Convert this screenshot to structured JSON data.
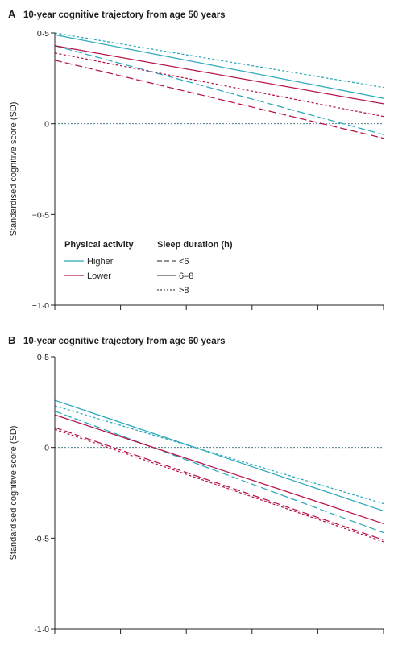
{
  "chart_data": [
    {
      "type": "line",
      "panel_letter": "A",
      "title": "10-year cognitive trajectory from age 50 years",
      "ylabel": "Standardised cognitive score (SD)",
      "xlabel": "",
      "yticks": [
        {
          "value": 0.5,
          "label": "0·5"
        },
        {
          "value": 0,
          "label": "0"
        },
        {
          "value": -0.5,
          "label": "−0·5"
        },
        {
          "value": -1,
          "label": "−1·0"
        }
      ],
      "ylim": [
        -1,
        0.5
      ],
      "xlim": [
        0,
        10
      ],
      "xticks": [
        0,
        2,
        4,
        6,
        8,
        10
      ],
      "reference_line": 0,
      "grid": false,
      "legend": {
        "placement": "bottom-left",
        "color_title": "Physical activity",
        "color_items": [
          {
            "label": "Higher",
            "color": "#2aa8bb"
          },
          {
            "label": "Lower",
            "color": "#b5144a"
          }
        ],
        "dash_title": "Sleep duration (h)",
        "dash_items": [
          {
            "label": "<6",
            "style": "dashed"
          },
          {
            "label": "6–8",
            "style": "solid"
          },
          {
            "label": ">8",
            "style": "dotted"
          }
        ]
      },
      "series": [
        {
          "activity": "Higher",
          "sleep": "<6",
          "color": "#2aa8bb",
          "style": "dashed",
          "x": [
            0,
            10
          ],
          "y": [
            0.43,
            -0.06
          ]
        },
        {
          "activity": "Higher",
          "sleep": "6–8",
          "color": "#2aa8bb",
          "style": "solid",
          "x": [
            0,
            10
          ],
          "y": [
            0.49,
            0.14
          ]
        },
        {
          "activity": "Higher",
          "sleep": ">8",
          "color": "#2aa8bb",
          "style": "dotted",
          "x": [
            0,
            10
          ],
          "y": [
            0.5,
            0.2
          ]
        },
        {
          "activity": "Lower",
          "sleep": "<6",
          "color": "#b5144a",
          "style": "dashed",
          "x": [
            0,
            10
          ],
          "y": [
            0.35,
            -0.08
          ]
        },
        {
          "activity": "Lower",
          "sleep": "6–8",
          "color": "#b5144a",
          "style": "solid",
          "x": [
            0,
            10
          ],
          "y": [
            0.43,
            0.11
          ]
        },
        {
          "activity": "Lower",
          "sleep": ">8",
          "color": "#b5144a",
          "style": "dotted",
          "x": [
            0,
            10
          ],
          "y": [
            0.39,
            0.04
          ]
        }
      ]
    },
    {
      "type": "line",
      "panel_letter": "B",
      "title": "10-year cognitive trajectory from age 60 years",
      "ylabel": "Standardised cognitive score (SD)",
      "xlabel": "",
      "yticks": [
        {
          "value": 0.5,
          "label": "0·5"
        },
        {
          "value": 0,
          "label": "0"
        },
        {
          "value": -0.5,
          "label": "-0·5"
        },
        {
          "value": -1,
          "label": "-1·0"
        }
      ],
      "ylim": [
        -1,
        0.5
      ],
      "xlim": [
        0,
        10
      ],
      "xticks": [
        0,
        2,
        4,
        6,
        8,
        10
      ],
      "reference_line": 0,
      "grid": false,
      "series": [
        {
          "activity": "Higher",
          "sleep": "<6",
          "color": "#2aa8bb",
          "style": "dashed",
          "x": [
            0,
            10
          ],
          "y": [
            0.2,
            -0.47
          ]
        },
        {
          "activity": "Higher",
          "sleep": "6–8",
          "color": "#2aa8bb",
          "style": "solid",
          "x": [
            0,
            10
          ],
          "y": [
            0.26,
            -0.35
          ]
        },
        {
          "activity": "Higher",
          "sleep": ">8",
          "color": "#2aa8bb",
          "style": "dotted",
          "x": [
            0,
            10
          ],
          "y": [
            0.23,
            -0.31
          ]
        },
        {
          "activity": "Lower",
          "sleep": "<6",
          "color": "#b5144a",
          "style": "dashed",
          "x": [
            0,
            10
          ],
          "y": [
            0.11,
            -0.51
          ]
        },
        {
          "activity": "Lower",
          "sleep": "6–8",
          "color": "#b5144a",
          "style": "solid",
          "x": [
            0,
            10
          ],
          "y": [
            0.18,
            -0.42
          ]
        },
        {
          "activity": "Lower",
          "sleep": ">8",
          "color": "#b5144a",
          "style": "dotted",
          "x": [
            0,
            10
          ],
          "y": [
            0.1,
            -0.52
          ]
        }
      ]
    }
  ]
}
